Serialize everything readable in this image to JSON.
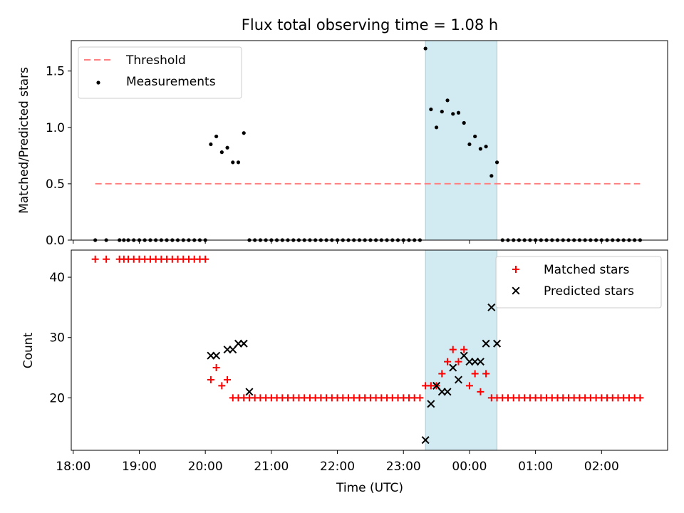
{
  "chart_data": [
    {
      "type": "scatter",
      "title": "Flux total observing time = 1.08 h",
      "xlabel": "",
      "ylabel": "Matched/Predicted stars",
      "ylim": [
        0,
        1.77
      ],
      "yticks": [
        "0.0",
        "0.5",
        "1.0",
        "1.5"
      ],
      "ytick_values": [
        0,
        0.5,
        1.0,
        1.5
      ],
      "xlim_hours": [
        17.97,
        27.0
      ],
      "legend_position": "top-left",
      "highlight_span": {
        "from": "23:20",
        "to": "00:25",
        "color": "#add8e6"
      },
      "series": [
        {
          "name": "Threshold",
          "style": "dashed-line",
          "color": "#ff8080",
          "x": [
            "18:20",
            "02:35"
          ],
          "y": [
            0.5,
            0.5
          ]
        },
        {
          "name": "Measurements",
          "style": "dot",
          "color": "#000000",
          "x": [
            "18:20",
            "18:30",
            "18:42",
            "18:46",
            "18:50",
            "18:55",
            "19:00",
            "19:05",
            "19:10",
            "19:15",
            "19:20",
            "19:25",
            "19:30",
            "19:35",
            "19:40",
            "19:45",
            "19:50",
            "19:55",
            "20:00",
            "20:05",
            "20:10",
            "20:15",
            "20:20",
            "20:25",
            "20:30",
            "20:35",
            "20:40",
            "20:45",
            "20:50",
            "20:55",
            "21:00",
            "21:05",
            "21:10",
            "21:15",
            "21:20",
            "21:25",
            "21:30",
            "21:35",
            "21:40",
            "21:45",
            "21:50",
            "21:55",
            "22:00",
            "22:05",
            "22:10",
            "22:15",
            "22:20",
            "22:25",
            "22:30",
            "22:35",
            "22:40",
            "22:45",
            "22:50",
            "22:55",
            "23:00",
            "23:05",
            "23:10",
            "23:15",
            "23:20",
            "23:25",
            "23:30",
            "23:35",
            "23:40",
            "23:45",
            "23:50",
            "23:55",
            "00:00",
            "00:05",
            "00:10",
            "00:15",
            "00:20",
            "00:25",
            "00:30",
            "00:35",
            "00:40",
            "00:45",
            "00:50",
            "00:55",
            "01:00",
            "01:05",
            "01:10",
            "01:15",
            "01:20",
            "01:25",
            "01:30",
            "01:35",
            "01:40",
            "01:45",
            "01:50",
            "01:55",
            "02:00",
            "02:05",
            "02:10",
            "02:15",
            "02:20",
            "02:25",
            "02:30",
            "02:35"
          ],
          "y": [
            0,
            0,
            0,
            0,
            0,
            0,
            0,
            0,
            0,
            0,
            0,
            0,
            0,
            0,
            0,
            0,
            0,
            0,
            0,
            0.85,
            0.92,
            0.78,
            0.82,
            0.69,
            0.69,
            0.95,
            0,
            0,
            0,
            0,
            0,
            0,
            0,
            0,
            0,
            0,
            0,
            0,
            0,
            0,
            0,
            0,
            0,
            0,
            0,
            0,
            0,
            0,
            0,
            0,
            0,
            0,
            0,
            0,
            0,
            0,
            0,
            0,
            1.7,
            1.16,
            1.0,
            1.14,
            1.24,
            1.12,
            1.13,
            1.04,
            0.85,
            0.92,
            0.81,
            0.83,
            0.57,
            0.69,
            0,
            0,
            0,
            0,
            0,
            0,
            0,
            0,
            0,
            0,
            0,
            0,
            0,
            0,
            0,
            0,
            0,
            0,
            0,
            0,
            0,
            0,
            0,
            0,
            0,
            0
          ]
        }
      ]
    },
    {
      "type": "scatter",
      "title": "",
      "xlabel": "Time (UTC)",
      "ylabel": "Count",
      "ylim": [
        11.3,
        44.5
      ],
      "yticks": [
        "20",
        "30",
        "40"
      ],
      "ytick_values": [
        20,
        30,
        40
      ],
      "xticks": [
        "18:00",
        "19:00",
        "20:00",
        "21:00",
        "22:00",
        "23:00",
        "00:00",
        "01:00",
        "02:00"
      ],
      "xtick_hours": [
        18,
        19,
        20,
        21,
        22,
        23,
        24,
        25,
        26
      ],
      "xlim_hours": [
        17.97,
        27.0
      ],
      "legend_position": "top-right",
      "highlight_span": {
        "from": "23:20",
        "to": "00:25",
        "color": "#add8e6"
      },
      "series": [
        {
          "name": "Matched stars",
          "marker": "plus",
          "color": "#ff0000",
          "x": [
            "18:20",
            "18:30",
            "18:42",
            "18:46",
            "18:50",
            "18:55",
            "19:00",
            "19:05",
            "19:10",
            "19:15",
            "19:20",
            "19:25",
            "19:30",
            "19:35",
            "19:40",
            "19:45",
            "19:50",
            "19:55",
            "20:00",
            "20:05",
            "20:10",
            "20:15",
            "20:20",
            "20:25",
            "20:30",
            "20:35",
            "20:40",
            "20:45",
            "20:50",
            "20:55",
            "21:00",
            "21:05",
            "21:10",
            "21:15",
            "21:20",
            "21:25",
            "21:30",
            "21:35",
            "21:40",
            "21:45",
            "21:50",
            "21:55",
            "22:00",
            "22:05",
            "22:10",
            "22:15",
            "22:20",
            "22:25",
            "22:30",
            "22:35",
            "22:40",
            "22:45",
            "22:50",
            "22:55",
            "23:00",
            "23:05",
            "23:10",
            "23:15",
            "23:20",
            "23:25",
            "23:30",
            "23:35",
            "23:40",
            "23:45",
            "23:50",
            "23:55",
            "00:00",
            "00:05",
            "00:10",
            "00:15",
            "00:20",
            "00:25",
            "00:30",
            "00:35",
            "00:40",
            "00:45",
            "00:50",
            "00:55",
            "01:00",
            "01:05",
            "01:10",
            "01:15",
            "01:20",
            "01:25",
            "01:30",
            "01:35",
            "01:40",
            "01:45",
            "01:50",
            "01:55",
            "02:00",
            "02:05",
            "02:10",
            "02:15",
            "02:20",
            "02:25",
            "02:30",
            "02:35"
          ],
          "y": [
            43,
            43,
            43,
            43,
            43,
            43,
            43,
            43,
            43,
            43,
            43,
            43,
            43,
            43,
            43,
            43,
            43,
            43,
            43,
            23,
            25,
            22,
            23,
            20,
            20,
            20,
            20,
            20,
            20,
            20,
            20,
            20,
            20,
            20,
            20,
            20,
            20,
            20,
            20,
            20,
            20,
            20,
            20,
            20,
            20,
            20,
            20,
            20,
            20,
            20,
            20,
            20,
            20,
            20,
            20,
            20,
            20,
            20,
            22,
            22,
            22,
            24,
            26,
            28,
            26,
            28,
            22,
            24,
            21,
            24,
            20,
            20,
            20,
            20,
            20,
            20,
            20,
            20,
            20,
            20,
            20,
            20,
            20,
            20,
            20,
            20,
            20,
            20,
            20,
            20,
            20,
            20,
            20,
            20,
            20,
            20,
            20,
            20
          ]
        },
        {
          "name": "Predicted stars",
          "marker": "x",
          "color": "#000000",
          "x": [
            "20:05",
            "20:10",
            "20:20",
            "20:25",
            "20:30",
            "20:35",
            "20:40",
            "23:20",
            "23:25",
            "23:30",
            "23:35",
            "23:40",
            "23:45",
            "23:50",
            "23:55",
            "00:00",
            "00:05",
            "00:10",
            "00:15",
            "00:20",
            "00:25"
          ],
          "y": [
            27,
            27,
            28,
            28,
            29,
            29,
            21,
            13,
            19,
            22,
            21,
            21,
            25,
            23,
            27,
            26,
            26,
            26,
            29,
            35,
            29
          ]
        }
      ]
    }
  ]
}
